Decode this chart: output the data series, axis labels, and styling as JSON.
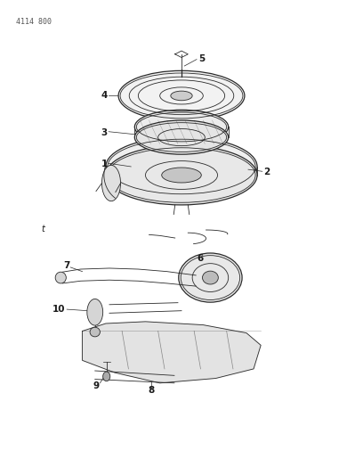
{
  "header_text": "4114 800",
  "background_color": "#ffffff",
  "line_color": "#2a2a2a",
  "label_color": "#1a1a1a",
  "figsize": [
    4.08,
    5.33
  ],
  "dpi": 100
}
